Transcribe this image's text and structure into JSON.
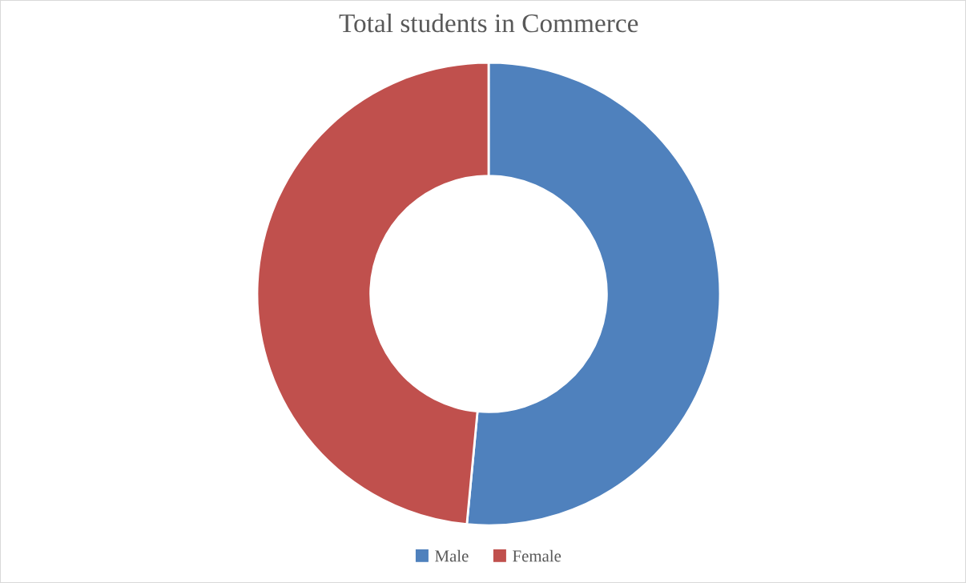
{
  "chart_data": {
    "type": "donut",
    "title": "Total students in Commerce",
    "categories": [
      "Male",
      "Female"
    ],
    "values": [
      51.5,
      48.5
    ],
    "colors": [
      "#4f81bd",
      "#c0504d"
    ],
    "legend": "bottom"
  }
}
